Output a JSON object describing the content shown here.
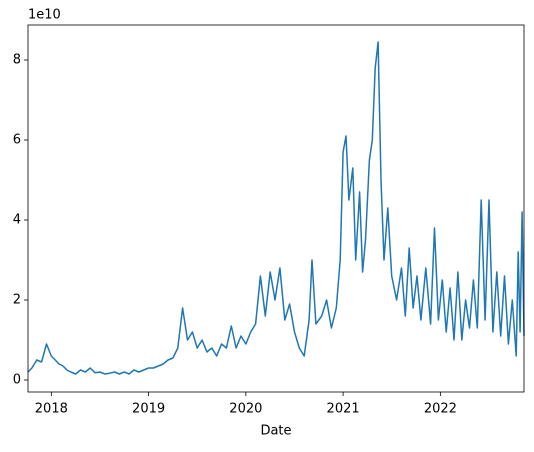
{
  "chart_data": {
    "type": "line",
    "x_label": "Date",
    "y_offset_label": "1e10",
    "color": "#1f77b4",
    "xlim": [
      2017.76,
      2022.86
    ],
    "xticks": [
      2018,
      2019,
      2020,
      2021,
      2022
    ],
    "ylim": [
      -0.3,
      8.875
    ],
    "yticks": [
      0,
      2,
      4,
      6,
      8
    ],
    "x": [
      2017.76,
      2017.8,
      2017.85,
      2017.9,
      2017.95,
      2018.0,
      2018.04,
      2018.08,
      2018.12,
      2018.16,
      2018.2,
      2018.25,
      2018.3,
      2018.35,
      2018.4,
      2018.45,
      2018.5,
      2018.55,
      2018.6,
      2018.65,
      2018.7,
      2018.75,
      2018.8,
      2018.85,
      2018.9,
      2018.95,
      2019.0,
      2019.05,
      2019.1,
      2019.15,
      2019.2,
      2019.25,
      2019.3,
      2019.35,
      2019.4,
      2019.45,
      2019.5,
      2019.55,
      2019.6,
      2019.65,
      2019.7,
      2019.75,
      2019.8,
      2019.85,
      2019.9,
      2019.95,
      2020.0,
      2020.05,
      2020.1,
      2020.15,
      2020.2,
      2020.25,
      2020.3,
      2020.35,
      2020.4,
      2020.45,
      2020.5,
      2020.55,
      2020.6,
      2020.65,
      2020.68,
      2020.72,
      2020.78,
      2020.83,
      2020.88,
      2020.93,
      2020.97,
      2021.0,
      2021.03,
      2021.06,
      2021.1,
      2021.13,
      2021.17,
      2021.2,
      2021.23,
      2021.27,
      2021.3,
      2021.33,
      2021.36,
      2021.39,
      2021.42,
      2021.46,
      2021.5,
      2021.55,
      2021.6,
      2021.64,
      2021.68,
      2021.72,
      2021.76,
      2021.8,
      2021.85,
      2021.9,
      2021.94,
      2021.98,
      2022.02,
      2022.06,
      2022.1,
      2022.14,
      2022.18,
      2022.22,
      2022.26,
      2022.3,
      2022.34,
      2022.38,
      2022.42,
      2022.46,
      2022.5,
      2022.54,
      2022.58,
      2022.62,
      2022.66,
      2022.7,
      2022.74,
      2022.78,
      2022.8,
      2022.82,
      2022.84,
      2022.86
    ],
    "values": [
      0.2,
      0.3,
      0.5,
      0.45,
      0.9,
      0.6,
      0.5,
      0.4,
      0.35,
      0.25,
      0.2,
      0.15,
      0.25,
      0.2,
      0.3,
      0.18,
      0.2,
      0.15,
      0.17,
      0.2,
      0.15,
      0.2,
      0.15,
      0.25,
      0.2,
      0.25,
      0.3,
      0.3,
      0.35,
      0.4,
      0.5,
      0.55,
      0.8,
      1.8,
      1.0,
      1.2,
      0.8,
      1.0,
      0.7,
      0.8,
      0.6,
      0.9,
      0.8,
      1.35,
      0.8,
      1.1,
      0.9,
      1.2,
      1.4,
      2.6,
      1.6,
      2.7,
      2.0,
      2.8,
      1.5,
      1.9,
      1.2,
      0.8,
      0.6,
      1.5,
      3.0,
      1.4,
      1.6,
      2.0,
      1.3,
      1.8,
      3.0,
      5.7,
      6.1,
      4.5,
      5.3,
      3.0,
      4.7,
      2.7,
      3.5,
      5.5,
      6.0,
      7.8,
      8.45,
      5.0,
      3.0,
      4.3,
      2.6,
      2.0,
      2.8,
      1.6,
      3.3,
      1.8,
      2.6,
      1.5,
      2.8,
      1.4,
      3.8,
      1.5,
      2.5,
      1.2,
      2.3,
      1.0,
      2.7,
      1.0,
      2.0,
      1.3,
      2.5,
      1.3,
      4.5,
      1.5,
      4.5,
      1.2,
      2.7,
      1.1,
      2.6,
      0.9,
      2.0,
      0.6,
      3.2,
      1.2,
      4.2,
      1.1
    ]
  }
}
